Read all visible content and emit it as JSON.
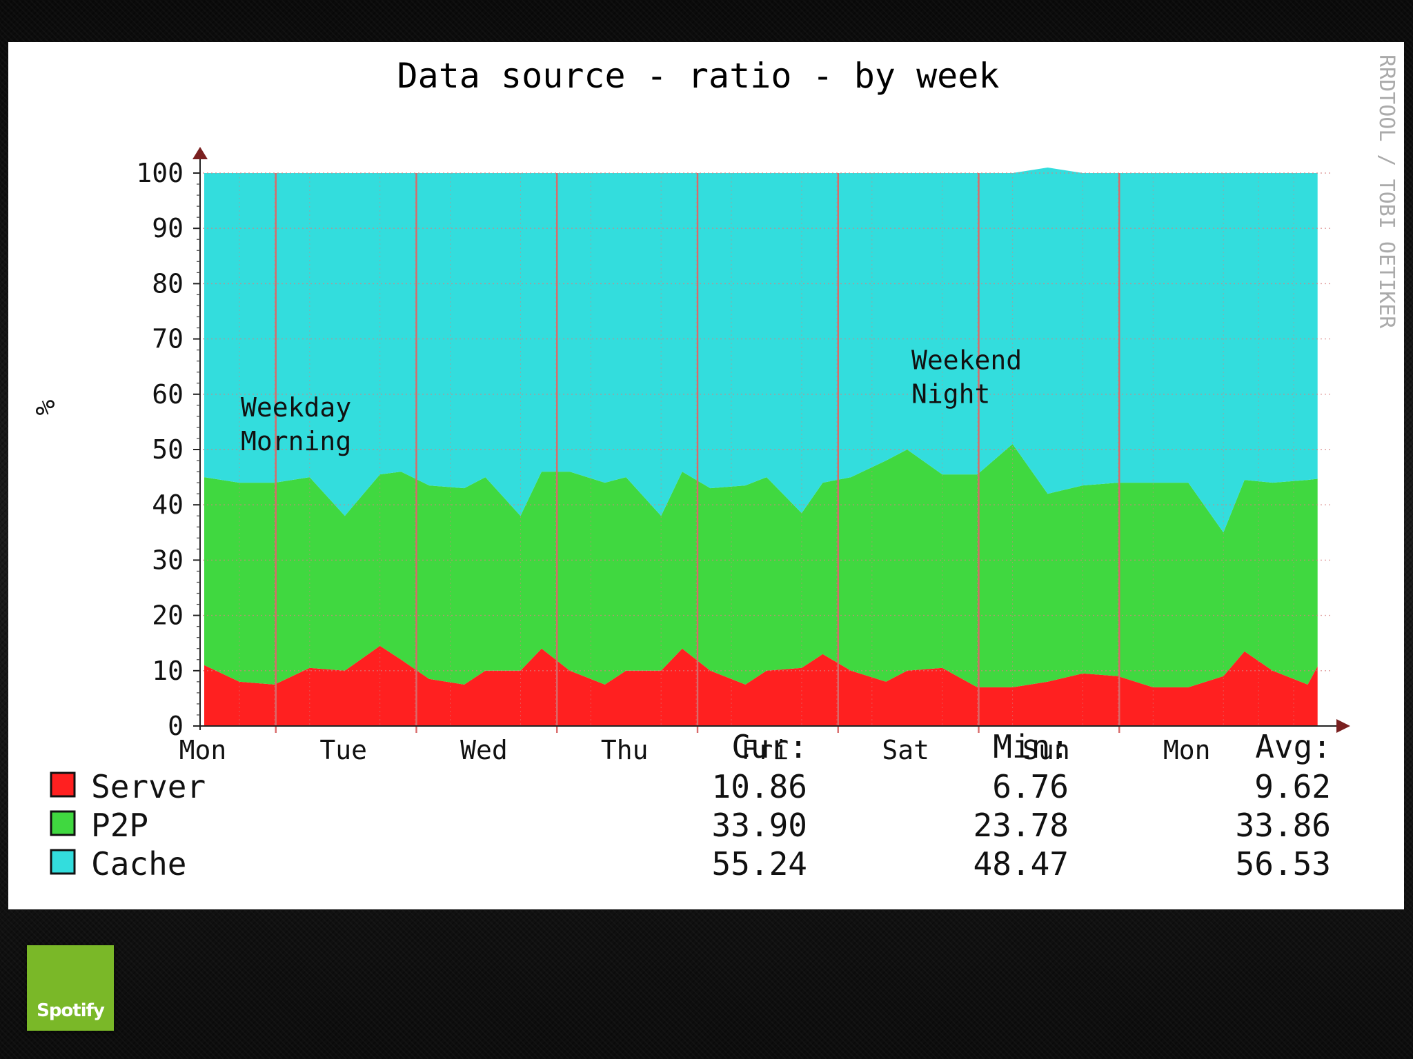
{
  "chart_data": {
    "type": "area",
    "stacked": true,
    "title": "Data source - ratio - by week",
    "ylabel": "%",
    "xlabel": "",
    "ylim": [
      0,
      100
    ],
    "yticks": [
      0,
      10,
      20,
      30,
      40,
      50,
      60,
      70,
      80,
      90,
      100
    ],
    "xticks": [
      "Mon",
      "Tue",
      "Wed",
      "Thu",
      "Fri",
      "Sat",
      "Sun",
      "Mon"
    ],
    "xlim_days": [
      0,
      8.0
    ],
    "grid": true,
    "legend_position": "bottom-left",
    "x": [
      0,
      0.25,
      0.5,
      0.75,
      1.0,
      1.25,
      1.4,
      1.6,
      1.85,
      2.0,
      2.25,
      2.4,
      2.6,
      2.85,
      3.0,
      3.25,
      3.4,
      3.6,
      3.85,
      4.0,
      4.25,
      4.4,
      4.6,
      4.85,
      5.0,
      5.25,
      5.5,
      5.75,
      6.0,
      6.25,
      6.5,
      6.75,
      7.0,
      7.25,
      7.4,
      7.6,
      7.85,
      7.92
    ],
    "series": [
      {
        "name": "Server",
        "color": "#ff2020",
        "values": [
          11,
          8,
          7.5,
          10.5,
          10,
          14.5,
          12,
          8.5,
          7.5,
          10,
          10,
          14,
          10,
          7.5,
          10,
          10,
          14,
          10,
          7.5,
          10,
          10.5,
          13,
          10,
          8,
          10,
          10.5,
          7,
          7,
          8,
          9.5,
          9,
          7,
          7,
          9,
          13.5,
          10,
          7.5,
          10.8
        ]
      },
      {
        "name": "P2P",
        "color": "#40d840",
        "values": [
          34,
          36,
          36.5,
          34.5,
          28,
          31,
          34,
          35,
          35.5,
          35,
          28,
          32,
          36,
          36.5,
          35,
          28,
          32,
          33,
          36,
          35,
          28,
          31,
          35,
          40,
          40,
          35,
          38.5,
          44,
          34,
          34,
          35,
          37,
          37,
          26,
          31,
          34,
          37,
          33.9
        ]
      },
      {
        "name": "Cache",
        "color": "#33dddd",
        "values": [
          55,
          56,
          56,
          55,
          62,
          54.5,
          54,
          56.5,
          57,
          55,
          62,
          54,
          54,
          56,
          55,
          62,
          54,
          57,
          56.5,
          55,
          61.5,
          56,
          55,
          52,
          50,
          54.5,
          54.5,
          49,
          59,
          56.5,
          56,
          56,
          56,
          65,
          55.5,
          56,
          55.5,
          55.3
        ]
      }
    ],
    "annotations": [
      {
        "text": [
          "Weekday",
          "Morning"
        ],
        "x": 0.28,
        "y": 56
      },
      {
        "text": [
          "Weekend",
          "Night"
        ],
        "x": 5.05,
        "y": 64.5
      }
    ],
    "stats_headers": [
      "Cur:",
      "Min:",
      "Avg:"
    ],
    "stats": [
      {
        "name": "Server",
        "color": "#ff2020",
        "cur": "10.86",
        "min": "6.76",
        "avg": "9.62"
      },
      {
        "name": "P2P",
        "color": "#40d840",
        "cur": "33.90",
        "min": "23.78",
        "avg": "33.86"
      },
      {
        "name": "Cache",
        "color": "#33dddd",
        "cur": "55.24",
        "min": "48.47",
        "avg": "56.53"
      }
    ],
    "watermark": "RRDTOOL / TOBI OETIKER"
  },
  "logo": {
    "text": "Spotify",
    "color": "#7ab828"
  }
}
